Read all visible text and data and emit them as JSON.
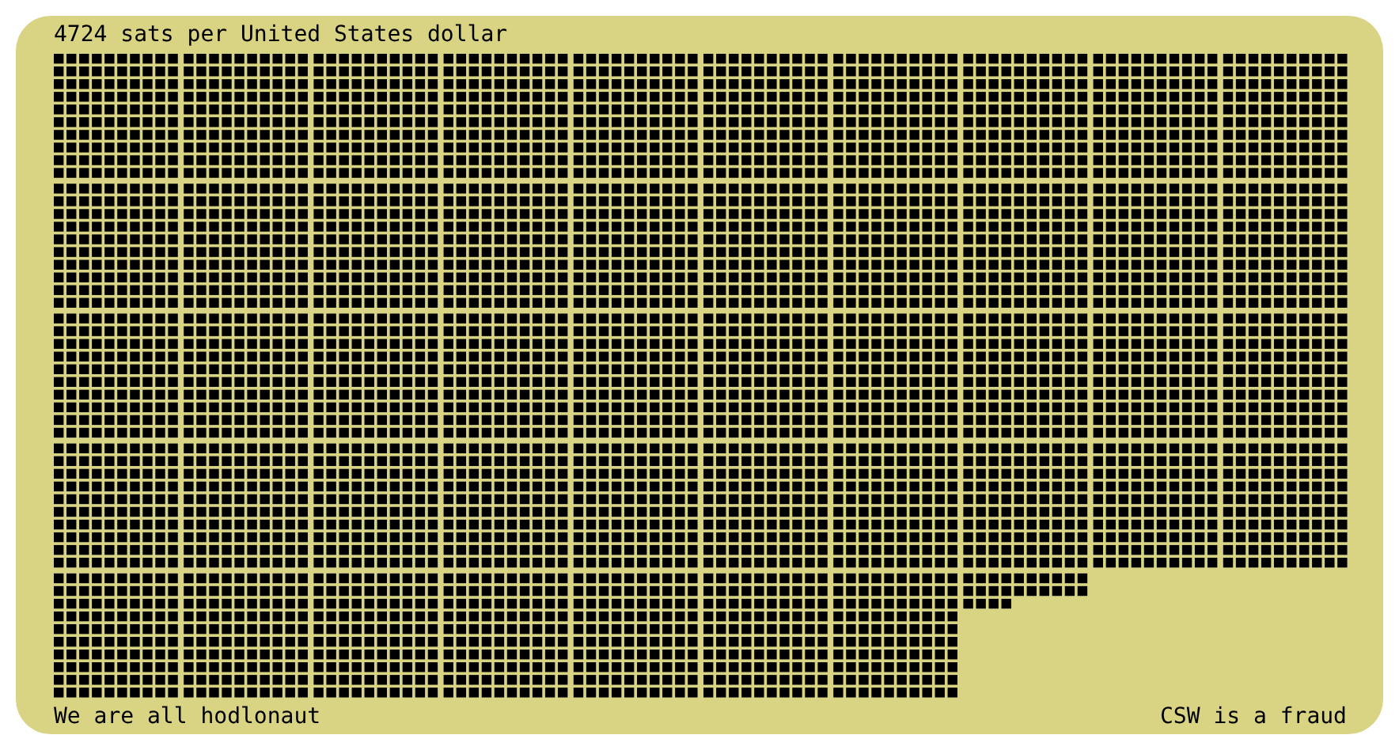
{
  "chart_data": {
    "type": "other",
    "title": "sats per United States dollar",
    "values": [
      4724
    ],
    "value_labels": [
      "4724"
    ],
    "annotations": [
      "We are all hodlonaut",
      "CSW is a fraud"
    ]
  }
}
